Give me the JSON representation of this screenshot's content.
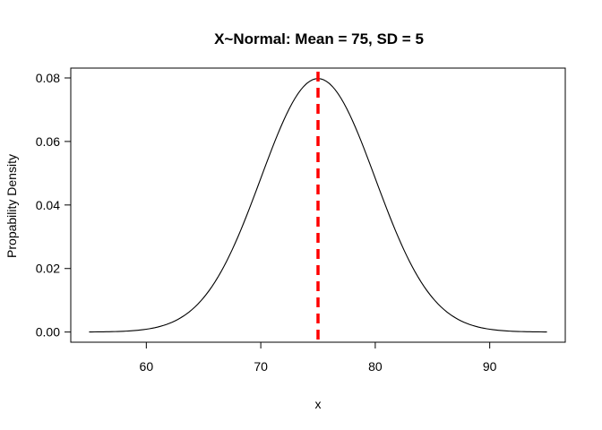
{
  "chart_data": {
    "type": "line",
    "title": "X~Normal: Mean = 75, SD = 5",
    "xlabel": "x",
    "ylabel": "Propability Density",
    "xlim": [
      53.4,
      96.6
    ],
    "ylim": [
      -0.0032,
      0.0831
    ],
    "x_ticks": [
      60,
      70,
      80,
      90
    ],
    "y_ticks": [
      0.0,
      0.02,
      0.04,
      0.06,
      0.08
    ],
    "y_tick_labels": [
      "0.00",
      "0.02",
      "0.04",
      "0.06",
      "0.08"
    ],
    "x_tick_labels": [
      "60",
      "70",
      "80",
      "90"
    ],
    "series": [
      {
        "distribution": "normal",
        "mean": 75,
        "sd": 5,
        "x_range": [
          55,
          95
        ],
        "x_step": 0.25,
        "color": "#000000"
      }
    ],
    "reference_line": {
      "type": "vertical",
      "x": 75,
      "style": "dashed",
      "color": "#ff0000"
    },
    "grid": false,
    "legend": "none"
  }
}
